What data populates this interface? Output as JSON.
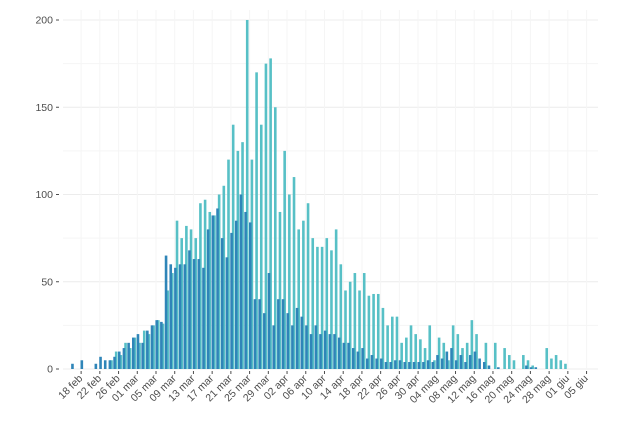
{
  "chart_data": {
    "type": "bar",
    "title": "",
    "xlabel": "",
    "ylabel": "",
    "ylim": [
      0,
      200
    ],
    "y_ticks": [
      0,
      50,
      100,
      150,
      200
    ],
    "grid": true,
    "legend": "none",
    "colors": {
      "series_a": "#2f85b8",
      "series_b": "#57c0c6"
    },
    "x_ticks": [
      {
        "day": 4,
        "label": "18 feb"
      },
      {
        "day": 8,
        "label": "22 feb"
      },
      {
        "day": 12,
        "label": "26 feb"
      },
      {
        "day": 16,
        "label": "01 mar"
      },
      {
        "day": 20,
        "label": "05 mar"
      },
      {
        "day": 24,
        "label": "09 mar"
      },
      {
        "day": 28,
        "label": "13 mar"
      },
      {
        "day": 32,
        "label": "17 mar"
      },
      {
        "day": 36,
        "label": "21 mar"
      },
      {
        "day": 40,
        "label": "25 mar"
      },
      {
        "day": 44,
        "label": "29 mar"
      },
      {
        "day": 48,
        "label": "02 apr"
      },
      {
        "day": 52,
        "label": "06 apr"
      },
      {
        "day": 56,
        "label": "10 apr"
      },
      {
        "day": 60,
        "label": "14 apr"
      },
      {
        "day": 64,
        "label": "18 apr"
      },
      {
        "day": 68,
        "label": "22 apr"
      },
      {
        "day": 72,
        "label": "26 apr"
      },
      {
        "day": 76,
        "label": "30 apr"
      },
      {
        "day": 80,
        "label": "04 mag"
      },
      {
        "day": 84,
        "label": "08 mag"
      },
      {
        "day": 88,
        "label": "12 mag"
      },
      {
        "day": 92,
        "label": "16 mag"
      },
      {
        "day": 96,
        "label": "20 mag"
      },
      {
        "day": 100,
        "label": "24 mag"
      },
      {
        "day": 104,
        "label": "28 mag"
      },
      {
        "day": 108,
        "label": "01 giu"
      },
      {
        "day": 112,
        "label": "05 giu"
      }
    ],
    "series": [
      {
        "values": [
          0,
          0,
          3,
          0,
          5,
          0,
          0,
          3,
          7,
          5,
          5,
          7,
          10,
          12,
          15,
          18,
          20,
          15,
          22,
          25,
          28,
          27,
          65,
          60,
          58,
          60,
          60,
          68,
          63,
          63,
          58,
          80,
          88,
          92,
          75,
          64,
          78,
          85,
          100,
          90,
          84,
          40,
          40,
          32,
          55,
          25,
          40,
          40,
          32,
          25,
          35,
          30,
          25,
          20,
          25,
          20,
          22,
          20,
          20,
          18,
          15,
          15,
          12,
          10,
          12,
          6,
          8,
          6,
          6,
          4,
          4,
          5,
          5,
          4,
          4,
          4,
          4,
          4,
          5,
          4,
          8,
          6,
          10,
          12,
          5,
          8,
          4,
          8,
          10,
          6,
          4,
          2,
          0,
          1,
          0,
          0,
          0,
          0,
          0,
          2,
          1,
          1,
          0,
          0,
          0,
          0,
          0,
          0,
          0,
          0,
          0,
          0,
          0,
          0
        ]
      },
      {
        "values": [
          0,
          0,
          0,
          0,
          0,
          0,
          0,
          0,
          0,
          0,
          5,
          10,
          8,
          15,
          12,
          18,
          15,
          22,
          20,
          25,
          28,
          26,
          45,
          55,
          85,
          75,
          82,
          80,
          75,
          95,
          97,
          90,
          88,
          100,
          105,
          120,
          140,
          125,
          130,
          200,
          120,
          170,
          140,
          175,
          178,
          150,
          90,
          125,
          100,
          110,
          80,
          85,
          95,
          75,
          70,
          70,
          75,
          68,
          80,
          60,
          45,
          50,
          55,
          45,
          55,
          42,
          43,
          43,
          35,
          25,
          30,
          30,
          15,
          18,
          25,
          20,
          17,
          12,
          25,
          5,
          18,
          15,
          5,
          25,
          20,
          12,
          15,
          28,
          20,
          0,
          15,
          0,
          15,
          0,
          12,
          8,
          5,
          0,
          8,
          5,
          2,
          0,
          0,
          12,
          6,
          8,
          5,
          3,
          0,
          0,
          0,
          0,
          0,
          0
        ]
      }
    ]
  }
}
